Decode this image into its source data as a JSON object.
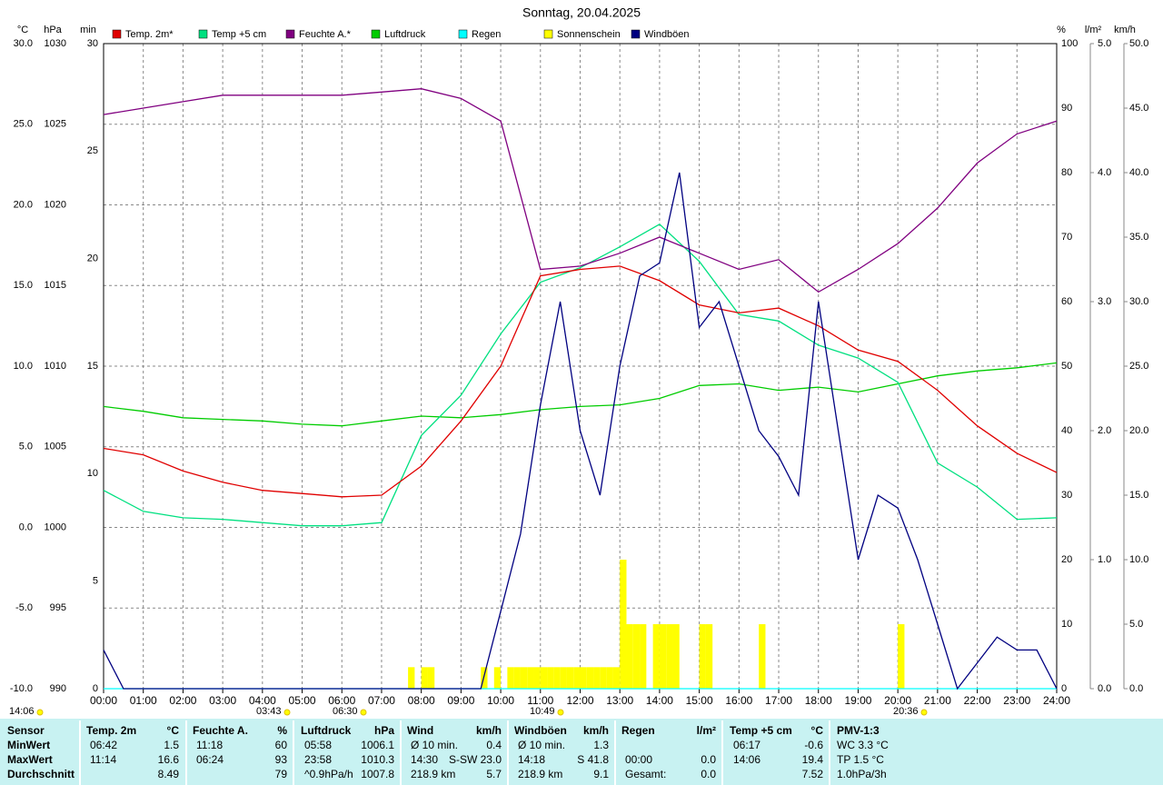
{
  "chart_data": {
    "type": "line",
    "title": "Sonntag, 20.04.2025",
    "grid": true,
    "x": [
      "00:00",
      "01:00",
      "02:00",
      "03:00",
      "04:00",
      "05:00",
      "06:00",
      "07:00",
      "08:00",
      "09:00",
      "10:00",
      "11:00",
      "12:00",
      "13:00",
      "14:00",
      "15:00",
      "16:00",
      "17:00",
      "18:00",
      "19:00",
      "20:00",
      "21:00",
      "22:00",
      "23:00",
      "24:00"
    ],
    "axes": [
      {
        "unit": "°C",
        "side": "left",
        "color": "#e00000",
        "lim": [
          -10,
          30
        ],
        "ticks": [
          {
            "value": -10,
            "label": "-10.0"
          },
          {
            "value": -5,
            "label": "-5.0"
          },
          {
            "value": 0,
            "label": "0.0"
          },
          {
            "value": 5,
            "label": "5.0"
          },
          {
            "value": 10,
            "label": "10.0"
          },
          {
            "value": 15,
            "label": "15.0"
          },
          {
            "value": 20,
            "label": "20.0"
          },
          {
            "value": 25,
            "label": "25.0"
          },
          {
            "value": 30,
            "label": "30.0"
          }
        ]
      },
      {
        "unit": "hPa",
        "side": "left",
        "color": "#00b000",
        "lim": [
          990,
          1030
        ],
        "ticks": [
          990,
          995,
          1000,
          1005,
          1010,
          1015,
          1020,
          1025,
          1030
        ]
      },
      {
        "unit": "min",
        "side": "left",
        "color": "#e8e800",
        "lim": [
          0,
          30
        ],
        "ticks": [
          0,
          5,
          10,
          15,
          20,
          25,
          30
        ]
      },
      {
        "unit": "%",
        "side": "right",
        "color": "#800080",
        "lim": [
          0,
          100
        ],
        "ticks": [
          0,
          10,
          20,
          30,
          40,
          50,
          60,
          70,
          80,
          90,
          100
        ]
      },
      {
        "unit": "l/m²",
        "side": "right",
        "color": "#00e0e0",
        "lim": [
          0,
          5
        ],
        "ticks": [
          {
            "value": 0,
            "label": "0.0"
          },
          {
            "value": 1,
            "label": "1.0"
          },
          {
            "value": 2,
            "label": "2.0"
          },
          {
            "value": 3,
            "label": "3.0"
          },
          {
            "value": 4,
            "label": "4.0"
          },
          {
            "value": 5,
            "label": "5.0"
          }
        ]
      },
      {
        "unit": "km/h",
        "side": "right",
        "color": "#000080",
        "lim": [
          0,
          50
        ],
        "ticks": [
          {
            "value": 0,
            "label": "0.0"
          },
          {
            "value": 5,
            "label": "5.0"
          },
          {
            "value": 10,
            "label": "10.0"
          },
          {
            "value": 15,
            "label": "15.0"
          },
          {
            "value": 20,
            "label": "20.0"
          },
          {
            "value": 25,
            "label": "25.0"
          },
          {
            "value": 30,
            "label": "30.0"
          },
          {
            "value": 35,
            "label": "35.0"
          },
          {
            "value": 40,
            "label": "40.0"
          },
          {
            "value": 45,
            "label": "45.0"
          },
          {
            "value": 50,
            "label": "50.0"
          }
        ]
      }
    ],
    "series": [
      {
        "name": "Temp. 2m*",
        "type": "line",
        "axis": "°C",
        "color": "#e00000",
        "label_color": "#000000",
        "values": [
          4.9,
          4.5,
          3.5,
          2.8,
          2.3,
          2.1,
          1.9,
          2.0,
          3.8,
          6.6,
          10.0,
          15.6,
          16.0,
          16.2,
          15.3,
          13.8,
          13.3,
          13.6,
          12.5,
          11.0,
          10.3,
          8.5,
          6.3,
          4.6,
          3.4
        ]
      },
      {
        "name": "Temp +5 cm",
        "type": "line",
        "axis": "°C",
        "color": "#00e080",
        "label_color": "#000000",
        "values": [
          2.3,
          1.0,
          0.6,
          0.5,
          0.3,
          0.1,
          0.1,
          0.3,
          5.7,
          8.2,
          12.0,
          15.2,
          16.1,
          17.4,
          18.8,
          16.5,
          13.2,
          12.8,
          11.3,
          10.5,
          9.0,
          4.0,
          2.5,
          0.5,
          0.6
        ]
      },
      {
        "name": "Feuchte A.*",
        "type": "line",
        "axis": "%",
        "color": "#800080",
        "label_color": "#000000",
        "values": [
          89,
          90,
          91,
          92,
          92,
          92,
          92,
          92.5,
          93,
          91.5,
          88,
          65,
          65.5,
          67.5,
          70,
          67.5,
          65,
          66.5,
          61.5,
          65,
          69,
          74.5,
          81.5,
          86,
          88
        ]
      },
      {
        "name": "Luftdruck",
        "type": "line",
        "axis": "hPa",
        "color": "#00cc00",
        "label_color": "#000000",
        "values": [
          1007.5,
          1007.2,
          1006.8,
          1006.7,
          1006.6,
          1006.4,
          1006.3,
          1006.6,
          1006.9,
          1006.8,
          1007.0,
          1007.3,
          1007.5,
          1007.6,
          1008.0,
          1008.8,
          1008.9,
          1008.5,
          1008.7,
          1008.4,
          1008.9,
          1009.4,
          1009.7,
          1009.9,
          1010.2
        ]
      },
      {
        "name": "Regen",
        "type": "line",
        "axis": "l/m²",
        "color": "#00ffff",
        "label_color": "#00e0e0",
        "values": [
          0,
          0,
          0,
          0,
          0,
          0,
          0,
          0,
          0,
          0,
          0,
          0,
          0,
          0,
          0,
          0,
          0,
          0,
          0,
          0,
          0,
          0,
          0,
          0,
          0
        ]
      },
      {
        "name": "Sonnenschein",
        "type": "bar",
        "axis": "min",
        "color": "#ffff00",
        "label_color": "#e8e800",
        "x": [
          "07:40",
          "08:00",
          "08:10",
          "09:30",
          "09:50",
          "10:10",
          "10:20",
          "10:30",
          "10:40",
          "10:50",
          "11:00",
          "11:10",
          "11:20",
          "11:30",
          "11:40",
          "11:50",
          "12:00",
          "12:10",
          "12:20",
          "12:30",
          "12:40",
          "12:50",
          "13:00",
          "13:10",
          "13:20",
          "13:30",
          "13:50",
          "14:00",
          "14:10",
          "14:20",
          "15:00",
          "15:10",
          "16:30",
          "20:00"
        ],
        "values": [
          1,
          1,
          1,
          1,
          1,
          1,
          1,
          1,
          1,
          1,
          1,
          1,
          1,
          1,
          1,
          1,
          1,
          1,
          1,
          1,
          1,
          1,
          6,
          3,
          3,
          3,
          3,
          3,
          3,
          3,
          3,
          3,
          3,
          3
        ]
      },
      {
        "name": "Windböen",
        "type": "line",
        "axis": "km/h",
        "color": "#000080",
        "label_color": "#000000",
        "x": [
          "00:00",
          "00:30",
          "01:00",
          "01:30",
          "02:00",
          "02:30",
          "03:00",
          "03:30",
          "04:00",
          "04:30",
          "05:00",
          "05:30",
          "06:00",
          "06:30",
          "07:00",
          "07:30",
          "08:00",
          "08:30",
          "09:00",
          "09:30",
          "10:00",
          "10:30",
          "11:00",
          "11:30",
          "12:00",
          "12:30",
          "13:00",
          "13:30",
          "14:00",
          "14:30",
          "15:00",
          "15:30",
          "16:00",
          "16:30",
          "17:00",
          "17:30",
          "18:00",
          "18:30",
          "19:00",
          "19:30",
          "20:00",
          "20:30",
          "21:00",
          "21:30",
          "22:00",
          "22:30",
          "23:00",
          "23:30",
          "24:00"
        ],
        "values": [
          3,
          0,
          0,
          0,
          0,
          0,
          0,
          0,
          0,
          0,
          0,
          0,
          0,
          0,
          0,
          0,
          0,
          0,
          0,
          0,
          6,
          12,
          22,
          30,
          20,
          15,
          25,
          32,
          33,
          40,
          28,
          30,
          25,
          20,
          18,
          15,
          30,
          20,
          10,
          15,
          14,
          10,
          5,
          0,
          2,
          4,
          3,
          3,
          0
        ]
      }
    ],
    "annotations": [
      "14:06",
      "03:43",
      "06:30",
      "10:49",
      "20:36"
    ]
  },
  "stats": {
    "header": "Sensor",
    "columns": [
      {
        "name": "Temp. 2m",
        "unit": "°C"
      },
      {
        "name": "Feuchte A.",
        "unit": "%"
      },
      {
        "name": "Luftdruck",
        "unit": "hPa"
      },
      {
        "name": "Wind",
        "unit": "km/h"
      },
      {
        "name": "Windböen",
        "unit": "km/h"
      },
      {
        "name": "Regen",
        "unit": "l/m²"
      },
      {
        "name": "Temp +5 cm",
        "unit": "°C"
      },
      {
        "name": "PMV-1:3"
      }
    ],
    "rows": [
      {
        "label": "MinWert",
        "cells": [
          [
            "06:42",
            "1.5"
          ],
          [
            "11:18",
            "60"
          ],
          [
            "05:58",
            "1006.1"
          ],
          [
            "Ø 10 min.",
            "0.4"
          ],
          [
            "Ø 10 min.",
            "1.3"
          ],
          [],
          [
            "06:17",
            "-0.6"
          ],
          [
            "WC 3.3 °C"
          ]
        ]
      },
      {
        "label": "MaxWert",
        "cells": [
          [
            "11:14",
            "16.6"
          ],
          [
            "06:24",
            "93"
          ],
          [
            "23:58",
            "1010.3"
          ],
          [
            "14:30",
            "S-SW 23.0"
          ],
          [
            "14:18",
            "S 41.8"
          ],
          [
            "00:00",
            "0.0"
          ],
          [
            "14:06",
            "19.4"
          ],
          [
            "TP 1.5 °C"
          ]
        ]
      },
      {
        "label": "Durchschnitt",
        "cells": [
          [
            "8.49"
          ],
          [
            "79"
          ],
          [
            "^0.9hPa/h",
            "1007.8"
          ],
          [
            "218.9 km",
            "5.7"
          ],
          [
            "218.9 km",
            "9.1"
          ],
          [
            "Gesamt:",
            "0.0"
          ],
          [
            "7.52"
          ],
          [
            "1.0hPa/3h"
          ]
        ]
      }
    ]
  }
}
